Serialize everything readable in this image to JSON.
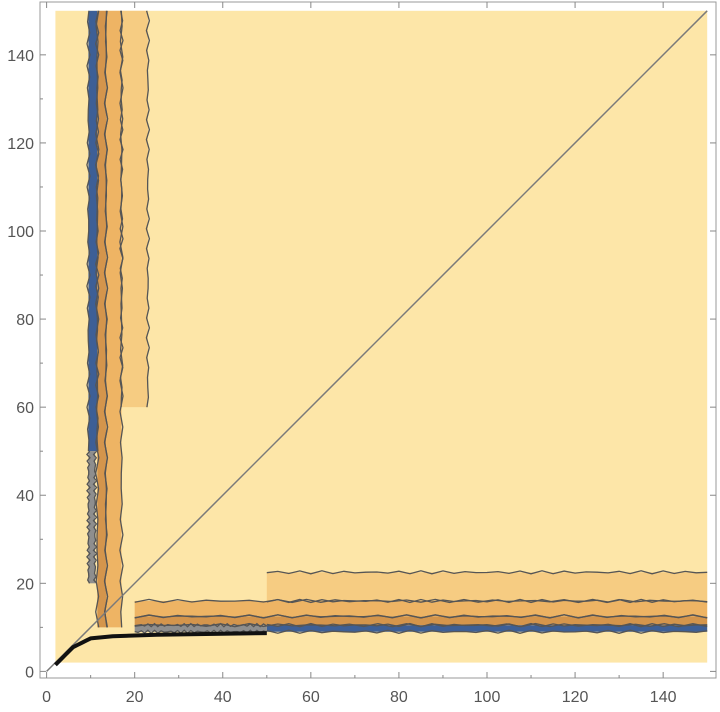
{
  "chart_data": {
    "type": "contour",
    "title": "",
    "xlabel": "",
    "ylabel": "",
    "xlim": [
      0,
      150
    ],
    "ylim": [
      0,
      150
    ],
    "x_ticks": [
      0,
      20,
      40,
      60,
      80,
      100,
      120,
      140
    ],
    "y_ticks": [
      0,
      20,
      40,
      60,
      80,
      100,
      120,
      140
    ],
    "grid": false,
    "legend": "none",
    "colors": {
      "background_fill": "#fde6a8",
      "band_light": "#f6cc82",
      "band_mid": "#eeb464",
      "band_dark": "#d4954c",
      "band_grey": "#8e8e8e",
      "band_blue": "#3d5f96",
      "contour_line": "#555555",
      "thick_contour": "#111111",
      "diagonal": "#7a7a7a"
    },
    "diagonal_line": [
      [
        0,
        0
      ],
      [
        150,
        150
      ]
    ],
    "regions": {
      "vertical_bands": [
        {
          "x0": 9.5,
          "x1": 11.5,
          "y0": 50,
          "y1": 150,
          "color": "band_blue"
        },
        {
          "x0": 9.5,
          "x1": 11.0,
          "y0": 20,
          "y1": 50,
          "color": "band_grey"
        },
        {
          "x0": 11.5,
          "x1": 13.5,
          "y0": 10,
          "y1": 150,
          "color": "band_dark"
        },
        {
          "x0": 13.5,
          "x1": 17.0,
          "y0": 10,
          "y1": 150,
          "color": "band_mid"
        },
        {
          "x0": 17.0,
          "x1": 23.0,
          "y0": 60,
          "y1": 150,
          "color": "band_light"
        }
      ],
      "horizontal_bands": [
        {
          "x0": 50,
          "x1": 150,
          "y0": 9.0,
          "y1": 10.5,
          "color": "band_blue"
        },
        {
          "x0": 20,
          "x1": 50,
          "y0": 9.0,
          "y1": 10.5,
          "color": "band_grey"
        },
        {
          "x0": 20,
          "x1": 150,
          "y0": 10.5,
          "y1": 12.5,
          "color": "band_dark"
        },
        {
          "x0": 20,
          "x1": 150,
          "y0": 12.5,
          "y1": 16.0,
          "color": "band_mid"
        },
        {
          "x0": 50,
          "x1": 150,
          "y0": 16.0,
          "y1": 22.5,
          "color": "band_light"
        }
      ],
      "boundary_curve": [
        [
          2,
          1.5
        ],
        [
          3,
          2.5
        ],
        [
          4,
          3.5
        ],
        [
          5,
          4.5
        ],
        [
          6,
          5.5
        ],
        [
          7,
          6.0
        ],
        [
          8,
          6.5
        ],
        [
          9,
          7.0
        ],
        [
          10,
          7.5
        ],
        [
          15,
          8.0
        ],
        [
          25,
          8.3
        ],
        [
          50,
          8.7
        ]
      ]
    }
  }
}
